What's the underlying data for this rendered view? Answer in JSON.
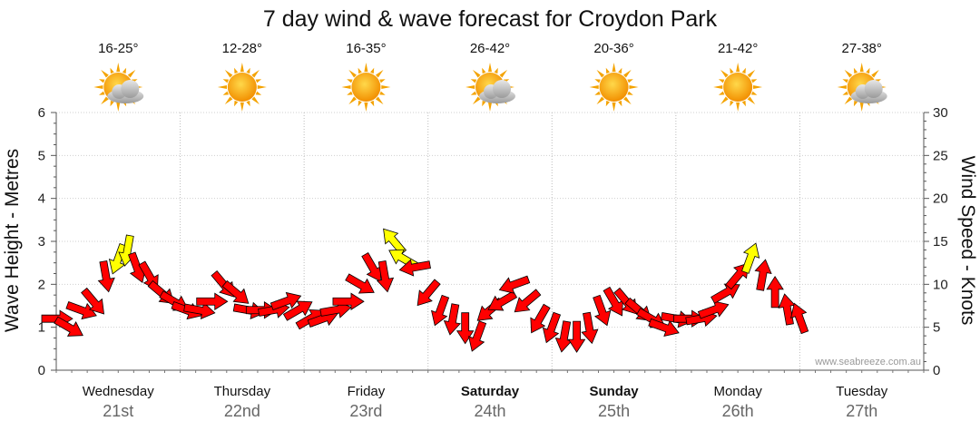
{
  "chart_data": {
    "type": "line",
    "title": "7 day wind & wave forecast for Croydon Park",
    "ylabel": "Wave Height - Metres",
    "y2label": "Wind Speed - Knots",
    "ylim": [
      0,
      6
    ],
    "y2lim": [
      0,
      30
    ],
    "yticks": [
      "0",
      "1",
      "2",
      "3",
      "4",
      "5",
      "6"
    ],
    "y2ticks": [
      "0",
      "5",
      "10",
      "15",
      "20",
      "25",
      "30"
    ],
    "grid": true,
    "credit": "www.seabreeze.com.au",
    "days": [
      {
        "name": "Wednesday",
        "date": "21st",
        "temp": "16-25°",
        "weather": "partly-cloudy",
        "bold": false
      },
      {
        "name": "Thursday",
        "date": "22nd",
        "temp": "12-28°",
        "weather": "sunny",
        "bold": false
      },
      {
        "name": "Friday",
        "date": "23rd",
        "temp": "16-35°",
        "weather": "sunny",
        "bold": false
      },
      {
        "name": "Saturday",
        "date": "24th",
        "temp": "26-42°",
        "weather": "partly-cloudy",
        "bold": true
      },
      {
        "name": "Sunday",
        "date": "25th",
        "temp": "20-36°",
        "weather": "sunny",
        "bold": true
      },
      {
        "name": "Monday",
        "date": "26th",
        "temp": "21-42°",
        "weather": "sunny",
        "bold": false
      },
      {
        "name": "Tuesday",
        "date": "27th",
        "temp": "27-38°",
        "weather": "partly-cloudy",
        "bold": false
      }
    ],
    "series": [
      {
        "unit": "knots",
        "points": [
          [
            0.0,
            6,
            90,
            "red"
          ],
          [
            0.2,
            5,
            120,
            "red"
          ],
          [
            0.4,
            7,
            110,
            "red"
          ],
          [
            0.6,
            8,
            140,
            "red"
          ],
          [
            0.8,
            11,
            170,
            "red"
          ],
          [
            1.0,
            13,
            200,
            "yellow"
          ],
          [
            1.15,
            14,
            190,
            "yellow"
          ],
          [
            1.3,
            12,
            160,
            "red"
          ],
          [
            1.5,
            11,
            150,
            "red"
          ],
          [
            1.7,
            9,
            130,
            "red"
          ],
          [
            1.9,
            8,
            120,
            "red"
          ],
          [
            2.1,
            7,
            110,
            "red"
          ],
          [
            2.3,
            7,
            100,
            "red"
          ],
          [
            2.5,
            8,
            90,
            "red"
          ],
          [
            2.7,
            10,
            140,
            "red"
          ],
          [
            2.9,
            9,
            130,
            "red"
          ],
          [
            3.1,
            7,
            100,
            "red"
          ],
          [
            3.3,
            7,
            90,
            "red"
          ],
          [
            3.5,
            7,
            80,
            "red"
          ],
          [
            3.7,
            8,
            70,
            "red"
          ],
          [
            3.9,
            7,
            60,
            "red"
          ],
          [
            4.1,
            6,
            60,
            "red"
          ],
          [
            4.3,
            6,
            70,
            "red"
          ],
          [
            4.5,
            7,
            80,
            "red"
          ],
          [
            4.7,
            8,
            90,
            "red"
          ],
          [
            4.9,
            10,
            120,
            "red"
          ],
          [
            5.1,
            12,
            150,
            "red"
          ],
          [
            5.3,
            11,
            170,
            "red"
          ],
          [
            5.45,
            15,
            320,
            "yellow"
          ],
          [
            5.6,
            13,
            300,
            "yellow"
          ],
          [
            5.8,
            12,
            260,
            "red"
          ],
          [
            6.0,
            9,
            220,
            "red"
          ],
          [
            6.2,
            7,
            200,
            "red"
          ],
          [
            6.4,
            6,
            190,
            "red"
          ],
          [
            6.6,
            5,
            180,
            "red"
          ],
          [
            6.8,
            4,
            200,
            "red"
          ],
          [
            7.0,
            7,
            230,
            "red"
          ],
          [
            7.2,
            8,
            240,
            "red"
          ],
          [
            7.4,
            10,
            250,
            "red"
          ],
          [
            7.6,
            8,
            230,
            "red"
          ],
          [
            7.8,
            6,
            210,
            "red"
          ],
          [
            8.0,
            5,
            200,
            "red"
          ],
          [
            8.2,
            4,
            190,
            "red"
          ],
          [
            8.4,
            4,
            180,
            "red"
          ],
          [
            8.6,
            5,
            170,
            "red"
          ],
          [
            8.8,
            7,
            160,
            "red"
          ],
          [
            9.0,
            8,
            150,
            "red"
          ],
          [
            9.2,
            8,
            140,
            "red"
          ],
          [
            9.4,
            7,
            130,
            "red"
          ],
          [
            9.6,
            6,
            120,
            "red"
          ],
          [
            9.8,
            5,
            110,
            "red"
          ],
          [
            10.0,
            6,
            100,
            "red"
          ],
          [
            10.2,
            6,
            90,
            "red"
          ],
          [
            10.4,
            6,
            80,
            "red"
          ],
          [
            10.6,
            7,
            70,
            "red"
          ],
          [
            10.8,
            9,
            60,
            "red"
          ],
          [
            11.0,
            11,
            40,
            "red"
          ],
          [
            11.2,
            13,
            20,
            "yellow"
          ],
          [
            11.4,
            11,
            10,
            "red"
          ],
          [
            11.6,
            9,
            0,
            "red"
          ],
          [
            11.8,
            7,
            350,
            "red"
          ],
          [
            12.0,
            6,
            340,
            "red"
          ]
        ]
      }
    ]
  }
}
